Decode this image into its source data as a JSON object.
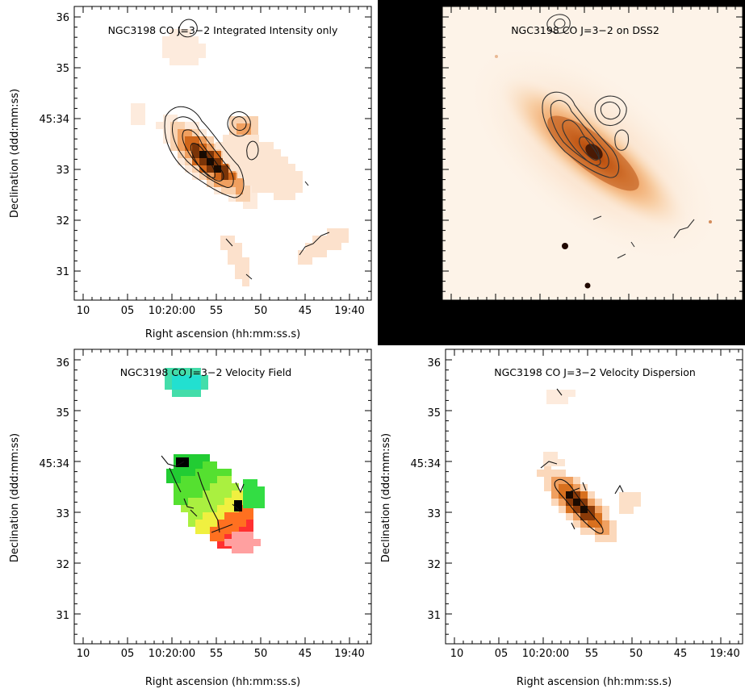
{
  "panels": {
    "p1": {
      "title": "NGC3198 CO J=3−2 Integrated Intensity only",
      "xlabel": "Right ascension (hh:mm:ss.s)",
      "ylabel": "Declination (ddd:mm:ss)"
    },
    "p2": {
      "title": "NGC3198 CO J=3−2 on DSS2"
    },
    "p3": {
      "title": "NGC3198 CO J=3−2 Velocity Field",
      "xlabel": "Right ascension (hh:mm:ss.s)",
      "ylabel": "Declination (ddd:mm:ss)"
    },
    "p4": {
      "title": "NGC3198 CO J=3−2 Velocity Dispersion",
      "xlabel": "Right ascension (hh:mm:ss.s)",
      "ylabel": "Declination (ddd:mm:ss)"
    }
  },
  "axes": {
    "x_ticks": [
      "10",
      "05",
      "10:20:00",
      "55",
      "50",
      "45",
      "19:40"
    ],
    "y_ticks": [
      "36",
      "35",
      "45:34",
      "33",
      "32",
      "31"
    ]
  },
  "colors": {
    "intensity": "#e07820",
    "dss_bg": "#fdf5ec",
    "frame": "#000000"
  }
}
